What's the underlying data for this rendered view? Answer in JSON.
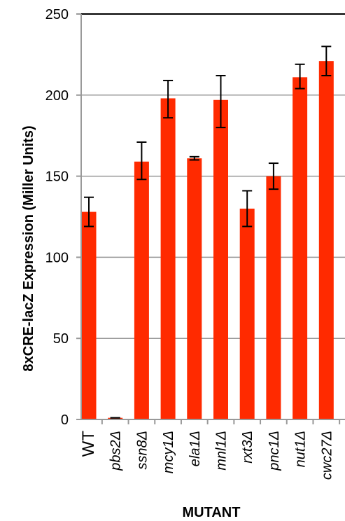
{
  "chart_data": {
    "type": "bar",
    "ylabel": "8xCRE-lacZ Expression (Miller Units)",
    "xlabel": "MUTANT",
    "ylim": [
      0,
      250
    ],
    "yticks": [
      0,
      50,
      100,
      150,
      200,
      250
    ],
    "grid": true,
    "categories": [
      {
        "label": "WT",
        "italic": false
      },
      {
        "label": "pbs2Δ",
        "italic": true
      },
      {
        "label": "ssn8Δ",
        "italic": true
      },
      {
        "label": "mcy1Δ",
        "italic": true
      },
      {
        "label": "ela1Δ",
        "italic": true
      },
      {
        "label": "mnl1Δ",
        "italic": true
      },
      {
        "label": "rxt3Δ",
        "italic": true
      },
      {
        "label": "pnc1Δ",
        "italic": true
      },
      {
        "label": "nut1Δ",
        "italic": true
      },
      {
        "label": "cwc27Δ",
        "italic": true
      }
    ],
    "values": [
      128,
      1,
      159,
      198,
      161,
      197,
      130,
      150,
      211,
      221
    ],
    "error_low": [
      119,
      1,
      148,
      186,
      160,
      180,
      119,
      142,
      204,
      212
    ],
    "error_high": [
      137,
      1,
      171,
      209,
      162,
      212,
      141,
      158,
      219,
      230
    ],
    "colors": {
      "bar": "#ff2a00",
      "grid": "#999999",
      "axis": "#000000"
    }
  }
}
